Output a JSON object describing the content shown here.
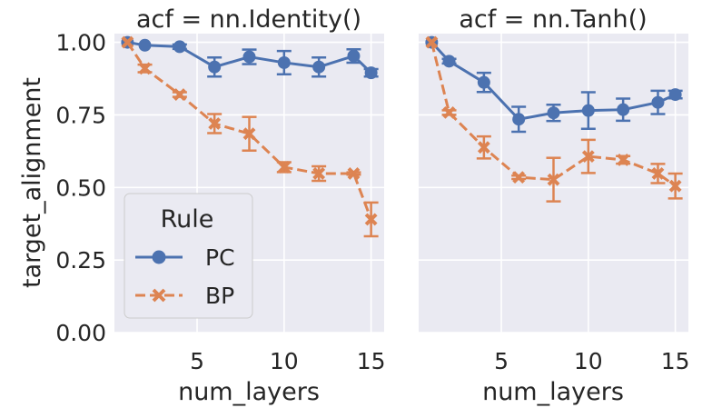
{
  "chart_data": [
    {
      "type": "line",
      "title": "acf = nn.Identity()",
      "xlabel": "num_layers",
      "ylabel": "target_alignment",
      "xlim": [
        0.25,
        15.75
      ],
      "ylim": [
        0,
        1.03
      ],
      "xticks": [
        "5",
        "10",
        "15"
      ],
      "yticks": [
        "0.00",
        "0.25",
        "0.50",
        "0.75",
        "1.00"
      ],
      "grid": true,
      "legend": {
        "title": "Rule",
        "placement": "lower-left",
        "entries": [
          "PC",
          "BP"
        ]
      },
      "series": [
        {
          "name": "PC",
          "color": "#4c72b0",
          "marker": "circle",
          "linestyle": "solid",
          "x": [
            1,
            2,
            4,
            6,
            8,
            10,
            12,
            14,
            15
          ],
          "y": [
            1.0,
            0.99,
            0.985,
            0.915,
            0.95,
            0.93,
            0.915,
            0.953,
            0.895
          ],
          "err": [
            0,
            0,
            0.008,
            0.033,
            0.025,
            0.04,
            0.033,
            0.023,
            0.013
          ]
        },
        {
          "name": "BP",
          "color": "#dd8452",
          "marker": "x",
          "linestyle": "dashed",
          "x": [
            1,
            2,
            4,
            6,
            8,
            10,
            12,
            14,
            15
          ],
          "y": [
            1.0,
            0.91,
            0.82,
            0.72,
            0.685,
            0.57,
            0.548,
            0.548,
            0.39
          ],
          "err": [
            0,
            0.013,
            0.008,
            0.033,
            0.058,
            0.017,
            0.025,
            0.004,
            0.058
          ]
        }
      ]
    },
    {
      "type": "line",
      "title": "acf = nn.Tanh()",
      "xlabel": "num_layers",
      "ylabel": "",
      "xlim": [
        0.25,
        15.75
      ],
      "ylim": [
        0,
        1.03
      ],
      "xticks": [
        "5",
        "10",
        "15"
      ],
      "grid": true,
      "series": [
        {
          "name": "PC",
          "color": "#4c72b0",
          "marker": "circle",
          "linestyle": "solid",
          "x": [
            1,
            2,
            4,
            6,
            8,
            10,
            12,
            14,
            15
          ],
          "y": [
            1.0,
            0.935,
            0.862,
            0.735,
            0.757,
            0.765,
            0.768,
            0.793,
            0.82
          ],
          "err": [
            0,
            0.008,
            0.033,
            0.043,
            0.028,
            0.063,
            0.038,
            0.04,
            0.013
          ]
        },
        {
          "name": "BP",
          "color": "#dd8452",
          "marker": "x",
          "linestyle": "dashed",
          "x": [
            1,
            2,
            4,
            6,
            8,
            10,
            12,
            14,
            15
          ],
          "y": [
            1.0,
            0.758,
            0.638,
            0.535,
            0.527,
            0.607,
            0.595,
            0.548,
            0.505
          ],
          "err": [
            0,
            0.008,
            0.038,
            0.006,
            0.075,
            0.057,
            0.013,
            0.033,
            0.043
          ]
        }
      ]
    }
  ]
}
